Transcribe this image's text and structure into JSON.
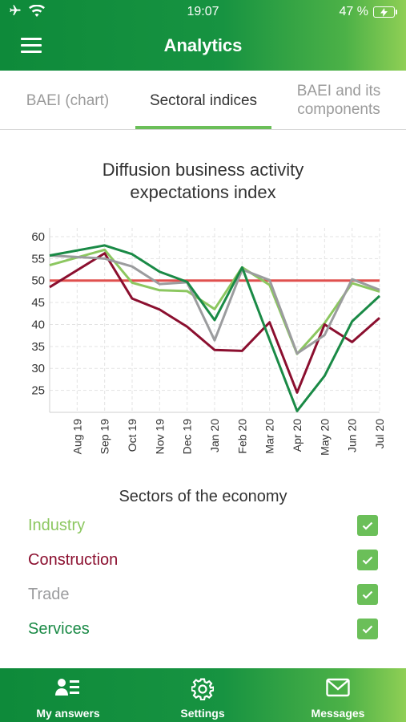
{
  "status_bar": {
    "time": "19:07",
    "battery": "47 %"
  },
  "header": {
    "title": "Analytics"
  },
  "tabs": [
    {
      "label": "BAEI (chart)"
    },
    {
      "label": "Sectoral indices"
    },
    {
      "label": "BAEI and its components"
    }
  ],
  "chart_title": "Diffusion business activity expectations index",
  "chart_data": {
    "type": "line",
    "title": "Diffusion business activity expectations index",
    "categories": [
      "Aug 19",
      "Sep 19",
      "Oct 19",
      "Nov 19",
      "Dec 19",
      "Jan 20",
      "Feb 20",
      "Mar 20",
      "Apr 20",
      "May 20",
      "Jun 20",
      "Jul 20"
    ],
    "yticks": [
      25,
      30,
      35,
      40,
      45,
      50,
      55,
      60
    ],
    "ylim": [
      20,
      62
    ],
    "grid": true,
    "reference_line": {
      "value": 50,
      "color": "#e0504e"
    },
    "series": [
      {
        "name": "Industry",
        "color": "#8cc760",
        "values": [
          53.5,
          57,
          49.5,
          47.8,
          47.6,
          43.5,
          53,
          49,
          33.3,
          40.3,
          49.4,
          47.5
        ]
      },
      {
        "name": "Construction",
        "color": "#8b0f2f",
        "values": [
          48.5,
          56.2,
          45.9,
          43.4,
          39.5,
          34.2,
          34,
          40.5,
          24.5,
          40,
          36,
          41.5
        ]
      },
      {
        "name": "Trade",
        "color": "#9b9c9e",
        "values": [
          55.7,
          55,
          53.2,
          49.2,
          49.6,
          36.4,
          52.5,
          50.1,
          33.4,
          37.6,
          50.3,
          47.9
        ]
      },
      {
        "name": "Services",
        "color": "#1a8a46",
        "values": [
          55.7,
          58,
          56,
          52,
          49.7,
          41,
          53,
          36.5,
          20.3,
          28.3,
          40.7,
          46.5
        ]
      }
    ]
  },
  "sectors": {
    "title": "Sectors of the economy",
    "items": [
      {
        "label": "Industry",
        "color": "#8cc760",
        "checked": true
      },
      {
        "label": "Construction",
        "color": "#8b0f2f",
        "checked": true
      },
      {
        "label": "Trade",
        "color": "#9b9c9e",
        "checked": true
      },
      {
        "label": "Services",
        "color": "#1a8a46",
        "checked": true
      }
    ]
  },
  "bottom_nav": [
    {
      "label": "My answers",
      "icon": "my-answers-icon"
    },
    {
      "label": "Settings",
      "icon": "gear-icon"
    },
    {
      "label": "Messages",
      "icon": "envelope-icon"
    }
  ]
}
